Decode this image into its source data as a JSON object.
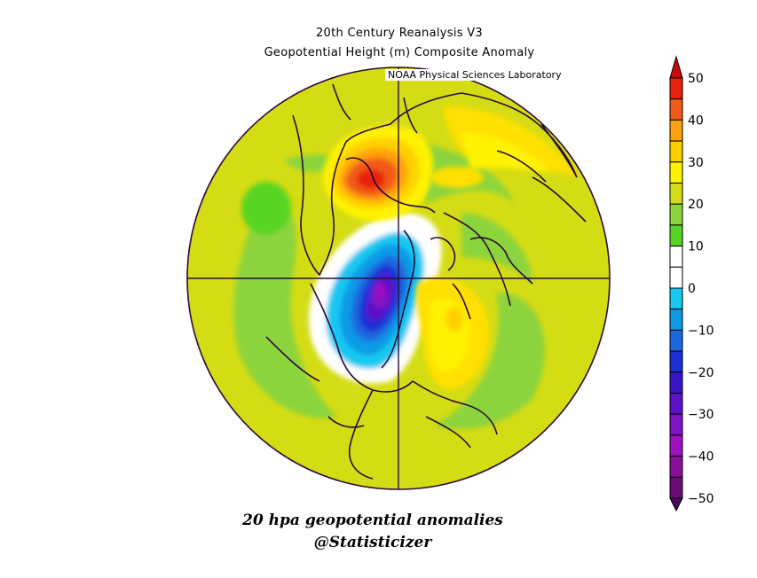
{
  "title": "20th Century Reanalysis V3",
  "subtitle": "Geopotential Height (m) Composite Anomaly",
  "credit": "NOAA Physical Sciences Laboratory",
  "caption": {
    "line1": "20 hpa geopotential anomalies",
    "line2": "@Statisticizer"
  },
  "map": {
    "projection": "north polar stereographic",
    "background_anomaly_color": "#d4dc14",
    "features": [
      {
        "name": "positive-anomaly-europe",
        "peak_m": 45,
        "color": "#e8461e"
      },
      {
        "name": "negative-anomaly-canada",
        "peak_m": -35,
        "color": "#9b16b9"
      },
      {
        "name": "positive-anomaly-siberia",
        "peak_m": 30,
        "color": "#ffe000"
      }
    ]
  },
  "colorbar": {
    "min": -50,
    "max": 50,
    "labels": [
      "50",
      "40",
      "30",
      "20",
      "10",
      "0",
      "−10",
      "−20",
      "−30",
      "−40",
      "−50"
    ],
    "colors": [
      "#e8220e",
      "#f25a18",
      "#ffa010",
      "#ffd000",
      "#fff200",
      "#d4dc14",
      "#8cd43c",
      "#58d424",
      "#ffffff",
      "#ffffff",
      "#18c8f0",
      "#109ae6",
      "#1c68de",
      "#1c2ed6",
      "#3a14c8",
      "#5c10c8",
      "#7e12c6",
      "#a010c0",
      "#8a0e9c",
      "#6c0a78"
    ],
    "top_arrow_color": "#c80a0a",
    "bottom_arrow_color": "#4a0a5a"
  }
}
